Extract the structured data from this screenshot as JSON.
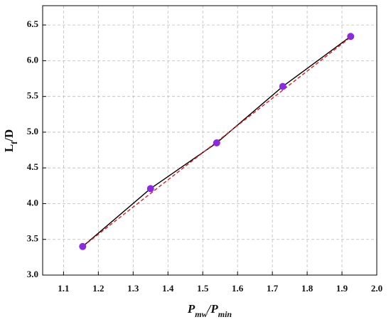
{
  "chart_data": {
    "type": "line",
    "xlabel": [
      "P",
      "mw",
      "/P",
      "min"
    ],
    "ylabel": [
      "L",
      "f",
      "/D"
    ],
    "x": [
      1.155,
      1.35,
      1.54,
      1.73,
      1.925
    ],
    "series": [
      {
        "color": "#000000",
        "marker_color": "#8a2be2",
        "values": [
          3.4,
          4.21,
          4.85,
          5.64,
          6.34
        ]
      },
      {
        "color": "#e41a1c",
        "dashed": true,
        "x": [
          1.155,
          1.925
        ],
        "values": [
          3.4,
          6.33
        ]
      }
    ],
    "xlim": [
      1.04,
      2.0
    ],
    "xticks": [
      1.1,
      1.2,
      1.3,
      1.4,
      1.5,
      1.6,
      1.7,
      1.8,
      1.9,
      {
        "value": 2,
        "label": "2.0"
      }
    ],
    "ylim": [
      3.0,
      6.77
    ],
    "yticks": [
      {
        "value": 3,
        "label": "3.0"
      },
      3.5,
      {
        "value": 4,
        "label": "4.0"
      },
      4.5,
      {
        "value": 5,
        "label": "5.0"
      },
      5.5,
      {
        "value": 6,
        "label": "6.0"
      },
      6.5
    ],
    "grid": true
  }
}
